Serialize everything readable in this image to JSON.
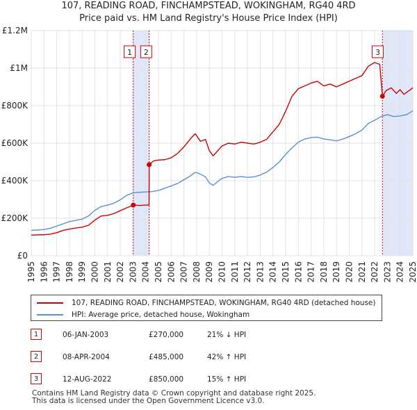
{
  "chart_data": {
    "type": "line",
    "title": "107, READING ROAD, FINCHAMPSTEAD, WOKINGHAM, RG40 4RD",
    "subtitle": "Price paid vs. HM Land Registry's House Price Index (HPI)",
    "xlabel": "",
    "ylabel": "",
    "xlim": [
      1995.0,
      2025.0
    ],
    "ylim": [
      0,
      1200000
    ],
    "x_ticks": [
      "1995",
      "1996",
      "1997",
      "1998",
      "1999",
      "2000",
      "2001",
      "2002",
      "2003",
      "2004",
      "2005",
      "2006",
      "2007",
      "2008",
      "2009",
      "2010",
      "2011",
      "2012",
      "2013",
      "2014",
      "2015",
      "2016",
      "2017",
      "2018",
      "2019",
      "2020",
      "2021",
      "2022",
      "2023",
      "2024",
      "2025"
    ],
    "y_ticks": [
      {
        "value": 0,
        "label": "£0"
      },
      {
        "value": 200000,
        "label": "£200K"
      },
      {
        "value": 400000,
        "label": "£400K"
      },
      {
        "value": 600000,
        "label": "£600K"
      },
      {
        "value": 800000,
        "label": "£800K"
      },
      {
        "value": 1000000,
        "label": "£1M"
      },
      {
        "value": 1200000,
        "label": "£1.2M"
      }
    ],
    "grid": true,
    "series": [
      {
        "name": "107, READING ROAD, FINCHAMPSTEAD, WOKINGHAM, RG40 4RD (detached house)",
        "color": "#cc0000",
        "points": [
          [
            1995.0,
            110000
          ],
          [
            1996.0,
            112000
          ],
          [
            1996.5,
            115000
          ],
          [
            1997.0,
            123000
          ],
          [
            1997.5,
            135000
          ],
          [
            1998.0,
            142000
          ],
          [
            1998.5,
            148000
          ],
          [
            1999.0,
            152000
          ],
          [
            1999.5,
            162000
          ],
          [
            2000.0,
            190000
          ],
          [
            2000.5,
            212000
          ],
          [
            2001.0,
            215000
          ],
          [
            2001.5,
            225000
          ],
          [
            2002.0,
            240000
          ],
          [
            2002.5,
            255000
          ],
          [
            2003.02,
            270000
          ],
          [
            2003.5,
            268000
          ],
          [
            2004.0,
            270000
          ],
          [
            2004.26,
            270000
          ],
          [
            2004.27,
            485000
          ],
          [
            2004.6,
            505000
          ],
          [
            2005.0,
            510000
          ],
          [
            2005.5,
            512000
          ],
          [
            2006.0,
            522000
          ],
          [
            2006.5,
            545000
          ],
          [
            2007.0,
            580000
          ],
          [
            2007.6,
            630000
          ],
          [
            2007.9,
            650000
          ],
          [
            2008.3,
            610000
          ],
          [
            2008.7,
            620000
          ],
          [
            2009.0,
            560000
          ],
          [
            2009.3,
            532000
          ],
          [
            2009.6,
            555000
          ],
          [
            2010.0,
            585000
          ],
          [
            2010.5,
            600000
          ],
          [
            2011.0,
            595000
          ],
          [
            2011.5,
            605000
          ],
          [
            2012.0,
            600000
          ],
          [
            2012.5,
            595000
          ],
          [
            2013.0,
            605000
          ],
          [
            2013.5,
            620000
          ],
          [
            2014.0,
            660000
          ],
          [
            2014.5,
            700000
          ],
          [
            2015.0,
            770000
          ],
          [
            2015.5,
            850000
          ],
          [
            2016.0,
            890000
          ],
          [
            2016.5,
            905000
          ],
          [
            2017.0,
            920000
          ],
          [
            2017.5,
            930000
          ],
          [
            2018.0,
            905000
          ],
          [
            2018.5,
            915000
          ],
          [
            2019.0,
            900000
          ],
          [
            2019.5,
            915000
          ],
          [
            2020.0,
            930000
          ],
          [
            2020.5,
            945000
          ],
          [
            2021.0,
            960000
          ],
          [
            2021.5,
            1010000
          ],
          [
            2022.0,
            1030000
          ],
          [
            2022.4,
            1020000
          ],
          [
            2022.61,
            850000
          ],
          [
            2022.9,
            880000
          ],
          [
            2023.3,
            895000
          ],
          [
            2023.7,
            865000
          ],
          [
            2024.0,
            885000
          ],
          [
            2024.3,
            860000
          ],
          [
            2024.7,
            880000
          ],
          [
            2025.0,
            895000
          ]
        ]
      },
      {
        "name": "HPI: Average price, detached house, Wokingham",
        "color": "#5b8fd0",
        "points": [
          [
            1995.0,
            135000
          ],
          [
            1995.5,
            137000
          ],
          [
            1996.0,
            140000
          ],
          [
            1996.5,
            146000
          ],
          [
            1997.0,
            158000
          ],
          [
            1997.5,
            170000
          ],
          [
            1998.0,
            182000
          ],
          [
            1998.5,
            188000
          ],
          [
            1999.0,
            195000
          ],
          [
            1999.5,
            212000
          ],
          [
            2000.0,
            242000
          ],
          [
            2000.5,
            262000
          ],
          [
            2001.0,
            270000
          ],
          [
            2001.5,
            280000
          ],
          [
            2002.0,
            298000
          ],
          [
            2002.5,
            322000
          ],
          [
            2003.0,
            335000
          ],
          [
            2003.5,
            338000
          ],
          [
            2004.0,
            340000
          ],
          [
            2004.5,
            342000
          ],
          [
            2005.0,
            348000
          ],
          [
            2005.5,
            360000
          ],
          [
            2006.0,
            372000
          ],
          [
            2006.5,
            385000
          ],
          [
            2007.0,
            405000
          ],
          [
            2007.5,
            425000
          ],
          [
            2007.9,
            445000
          ],
          [
            2008.3,
            435000
          ],
          [
            2008.7,
            420000
          ],
          [
            2009.0,
            388000
          ],
          [
            2009.3,
            375000
          ],
          [
            2009.7,
            398000
          ],
          [
            2010.0,
            412000
          ],
          [
            2010.5,
            422000
          ],
          [
            2011.0,
            418000
          ],
          [
            2011.5,
            422000
          ],
          [
            2012.0,
            418000
          ],
          [
            2012.5,
            420000
          ],
          [
            2013.0,
            430000
          ],
          [
            2013.5,
            445000
          ],
          [
            2014.0,
            470000
          ],
          [
            2014.5,
            500000
          ],
          [
            2015.0,
            540000
          ],
          [
            2015.5,
            575000
          ],
          [
            2016.0,
            605000
          ],
          [
            2016.5,
            622000
          ],
          [
            2017.0,
            630000
          ],
          [
            2017.5,
            632000
          ],
          [
            2018.0,
            622000
          ],
          [
            2018.5,
            618000
          ],
          [
            2019.0,
            612000
          ],
          [
            2019.5,
            622000
          ],
          [
            2020.0,
            635000
          ],
          [
            2020.5,
            650000
          ],
          [
            2021.0,
            670000
          ],
          [
            2021.5,
            705000
          ],
          [
            2022.0,
            722000
          ],
          [
            2022.5,
            742000
          ],
          [
            2023.0,
            752000
          ],
          [
            2023.5,
            742000
          ],
          [
            2024.0,
            745000
          ],
          [
            2024.5,
            752000
          ],
          [
            2025.0,
            772000
          ]
        ]
      }
    ],
    "sales": [
      {
        "label": "1",
        "x": 2003.02,
        "value": 270000
      },
      {
        "label": "2",
        "x": 2004.27,
        "value": 485000
      },
      {
        "label": "3",
        "x": 2022.61,
        "value": 850000
      }
    ],
    "shaded_spans": [
      [
        2003.02,
        2004.27
      ],
      [
        2022.61,
        2025.0
      ]
    ]
  },
  "legend": {
    "property_label": "107, READING ROAD, FINCHAMPSTEAD, WOKINGHAM, RG40 4RD (detached house)",
    "hpi_label": "HPI: Average price, detached house, Wokingham",
    "property_color": "#cc0000",
    "hpi_color": "#5b8fd0"
  },
  "transactions": [
    {
      "num": "1",
      "date": "06-JAN-2003",
      "price": "£270,000",
      "hpi": "21% ↓ HPI"
    },
    {
      "num": "2",
      "date": "08-APR-2004",
      "price": "£485,000",
      "hpi": "42% ↑ HPI"
    },
    {
      "num": "3",
      "date": "12-AUG-2022",
      "price": "£850,000",
      "hpi": "15% ↑ HPI"
    }
  ],
  "footer": {
    "line1": "Contains HM Land Registry data © Crown copyright and database right 2025.",
    "line2": "This data is licensed under the Open Government Licence v3.0."
  }
}
